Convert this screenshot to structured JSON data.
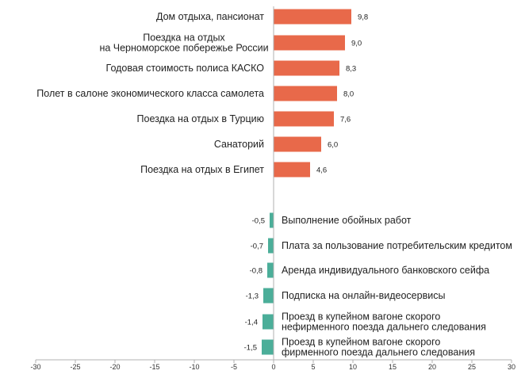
{
  "chart_data": {
    "type": "bar",
    "orientation": "horizontal",
    "colors": {
      "positive": "#E8694A",
      "negative": "#4BAE99",
      "axis": "#b0b0b0"
    },
    "xlim": [
      -30,
      30
    ],
    "x_ticks": [
      "-30",
      "-25",
      "-20",
      "-15",
      "-10",
      "-5",
      "0",
      "5",
      "10",
      "15",
      "20",
      "25",
      "30"
    ],
    "items": [
      {
        "lines": [
          "Дом отдыха, пансионат"
        ],
        "value": 9.8,
        "value_label": "9,8"
      },
      {
        "lines": [
          "Поездка на отдых",
          "на Черноморское побережье России"
        ],
        "value": 9.0,
        "value_label": "9,0"
      },
      {
        "lines": [
          "Годовая стоимость полиса КАСКО"
        ],
        "value": 8.3,
        "value_label": "8,3"
      },
      {
        "lines": [
          "Полет в салоне экономического класса самолета"
        ],
        "value": 8.0,
        "value_label": "8,0"
      },
      {
        "lines": [
          "Поездка на отдых в Турцию"
        ],
        "value": 7.6,
        "value_label": "7,6"
      },
      {
        "lines": [
          "Санаторий"
        ],
        "value": 6.0,
        "value_label": "6,0"
      },
      {
        "lines": [
          "Поездка на отдых в Египет"
        ],
        "value": 4.6,
        "value_label": "4,6"
      },
      {
        "lines": [
          "Выполнение обойных работ"
        ],
        "value": -0.5,
        "value_label": "-0,5"
      },
      {
        "lines": [
          "Плата за пользование потребительским кредитом"
        ],
        "value": -0.7,
        "value_label": "-0,7"
      },
      {
        "lines": [
          "Аренда индивидуального банковского сейфа"
        ],
        "value": -0.8,
        "value_label": "-0,8"
      },
      {
        "lines": [
          "Подписка на онлайн-видеосервисы"
        ],
        "value": -1.3,
        "value_label": "-1,3"
      },
      {
        "lines": [
          "Проезд в купейном вагоне скорого",
          "нефирменного поезда дальнего следования"
        ],
        "value": -1.4,
        "value_label": "-1,4"
      },
      {
        "lines": [
          "Проезд в купейном вагоне скорого",
          "фирменного поезда дальнего следования"
        ],
        "value": -1.5,
        "value_label": "-1,5"
      }
    ]
  }
}
